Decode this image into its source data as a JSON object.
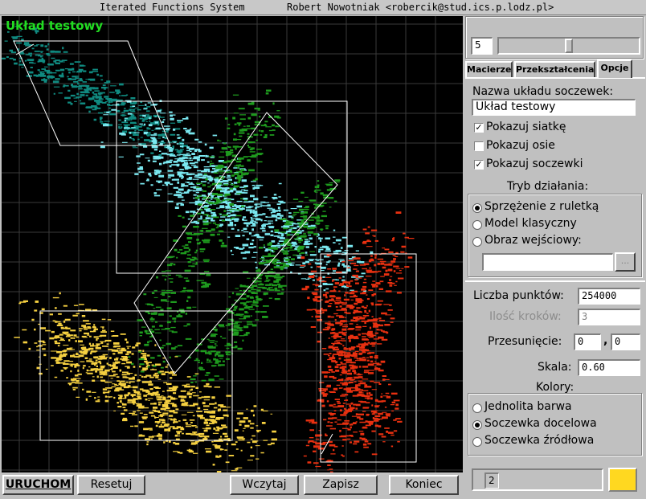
{
  "window": {
    "app_title": "Iterated Functions System",
    "author": "Robert Nowotniak <robercik@stud.ics.p.lodz.pl>"
  },
  "canvas": {
    "system_name": "Układ testowy",
    "background": "#000000",
    "lens_colors": [
      "#108a80",
      "#7ae8f0",
      "#1e9a1e",
      "#f5d040",
      "#e83010"
    ],
    "frame_color": "#ffffff",
    "grid_color": "#3a3a3a"
  },
  "top": {
    "lens_count": "5",
    "slider_value": 0.5
  },
  "tabs": [
    {
      "label": "Macierze"
    },
    {
      "label": "Przekształcenia"
    },
    {
      "label": "Opcje"
    }
  ],
  "options": {
    "name_label": "Nazwa układu soczewek:",
    "name_value": "Układ testowy",
    "show_grid": "Pokazuj siatkę",
    "show_axes": "Pokazuj osie",
    "show_lenses": "Pokazuj soczewki",
    "mode_title": "Tryb działania:",
    "mode_roulette": "Sprzężenie z ruletką",
    "mode_classic": "Model klasyczny",
    "mode_input": "Obraz wejściowy:",
    "browse": "...",
    "points_label": "Liczba punktów:",
    "points_value": "254000",
    "steps_label": "Ilość kroków:",
    "steps_value": "3",
    "shift_label": "Przesunięcie:",
    "shift_x": "0",
    "shift_sep": ",",
    "shift_y": "0",
    "scale_label": "Skala:",
    "scale_value": "0.60",
    "colors_title": "Kolory:",
    "color_uniform": "Jednolita barwa",
    "color_target": "Soczewka docelowa",
    "color_source": "Soczewka źródłowa",
    "selected_lens": "2",
    "swatch_color": "#ffd820"
  },
  "buttons": {
    "run": "URUCHOM",
    "reset": "Resetuj",
    "load": "Wczytaj",
    "save": "Zapisz",
    "quit": "Koniec"
  }
}
